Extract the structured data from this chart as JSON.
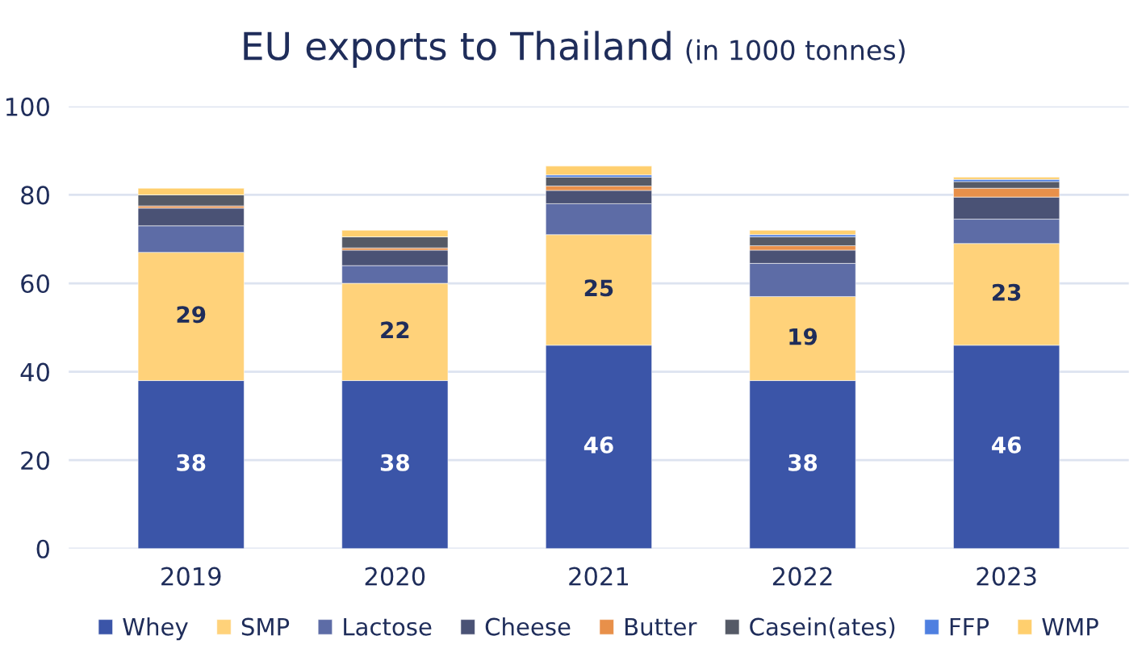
{
  "chart_data": {
    "type": "bar",
    "stacked": true,
    "title": "EU exports to Thailand",
    "subtitle": "(in 1000 tonnes)",
    "categories": [
      "2019",
      "2020",
      "2021",
      "2022",
      "2023"
    ],
    "series": [
      {
        "name": "Whey",
        "color": "#3b55a8",
        "values": [
          38,
          38,
          46,
          38,
          46
        ],
        "value_labels": [
          "38",
          "38",
          "46",
          "38",
          "46"
        ]
      },
      {
        "name": "SMP",
        "color": "#ffd27a",
        "values": [
          29,
          22,
          25,
          19,
          23
        ],
        "value_labels": [
          "29",
          "22",
          "25",
          "19",
          "23"
        ]
      },
      {
        "name": "Lactose",
        "color": "#5d6ca6",
        "values": [
          6,
          4,
          7,
          7.5,
          5.5
        ]
      },
      {
        "name": "Cheese",
        "color": "#4a5275",
        "values": [
          4,
          3.5,
          3,
          3,
          5
        ]
      },
      {
        "name": "Butter",
        "color": "#e8904a",
        "values": [
          0.5,
          0.5,
          1,
          1,
          2
        ]
      },
      {
        "name": "Casein(ates)",
        "color": "#555a66",
        "values": [
          2.5,
          2.5,
          2,
          2,
          1.5
        ]
      },
      {
        "name": "FFP",
        "color": "#4e7fe0",
        "values": [
          0,
          0,
          0.5,
          0.5,
          0.5
        ]
      },
      {
        "name": "WMP",
        "color": "#ffcf6e",
        "values": [
          1.5,
          1.5,
          2,
          1,
          0.5
        ]
      }
    ],
    "ylim": [
      0,
      100
    ],
    "yticks": [
      0,
      20,
      40,
      60,
      80,
      100
    ],
    "grid": "y",
    "legend": "bottom"
  }
}
